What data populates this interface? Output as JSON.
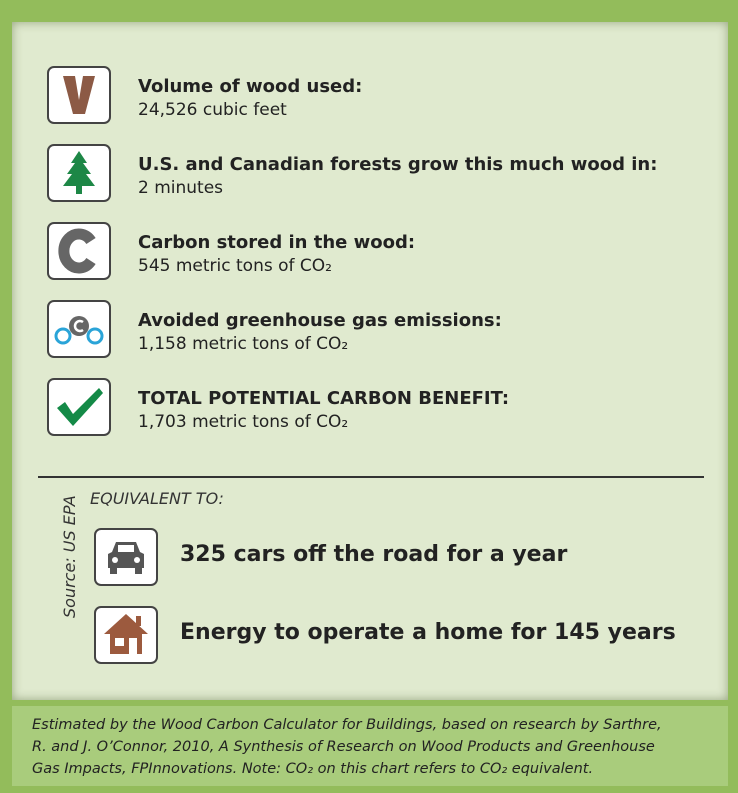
{
  "items": [
    {
      "title": "Volume of wood used:",
      "value": "24,526 cubic feet"
    },
    {
      "title": "U.S. and Canadian forests grow this much wood in:",
      "value": "2 minutes"
    },
    {
      "title": "Carbon stored in the wood:",
      "value": "545 metric tons of CO₂"
    },
    {
      "title": "Avoided greenhouse gas emissions:",
      "value": "1,158 metric tons of CO₂"
    },
    {
      "title": "TOTAL POTENTIAL CARBON BENEFIT:",
      "value": "1,703 metric tons of CO₂"
    }
  ],
  "equivalent_heading": "EQUIVALENT TO:",
  "source": "Source: US EPA",
  "equivalents": [
    "325 cars off the road for a year",
    "Energy to operate a home for 145 years"
  ],
  "footer_lines": [
    "Estimated by the Wood Carbon Calculator for Buildings, based on research by Sarthre,",
    "R. and J. O’Connor, 2010, A Synthesis of Research on Wood Products and Greenhouse",
    "Gas Impacts, FPInnovations. Note: CO₂ on this chart refers to CO₂ equivalent."
  ]
}
